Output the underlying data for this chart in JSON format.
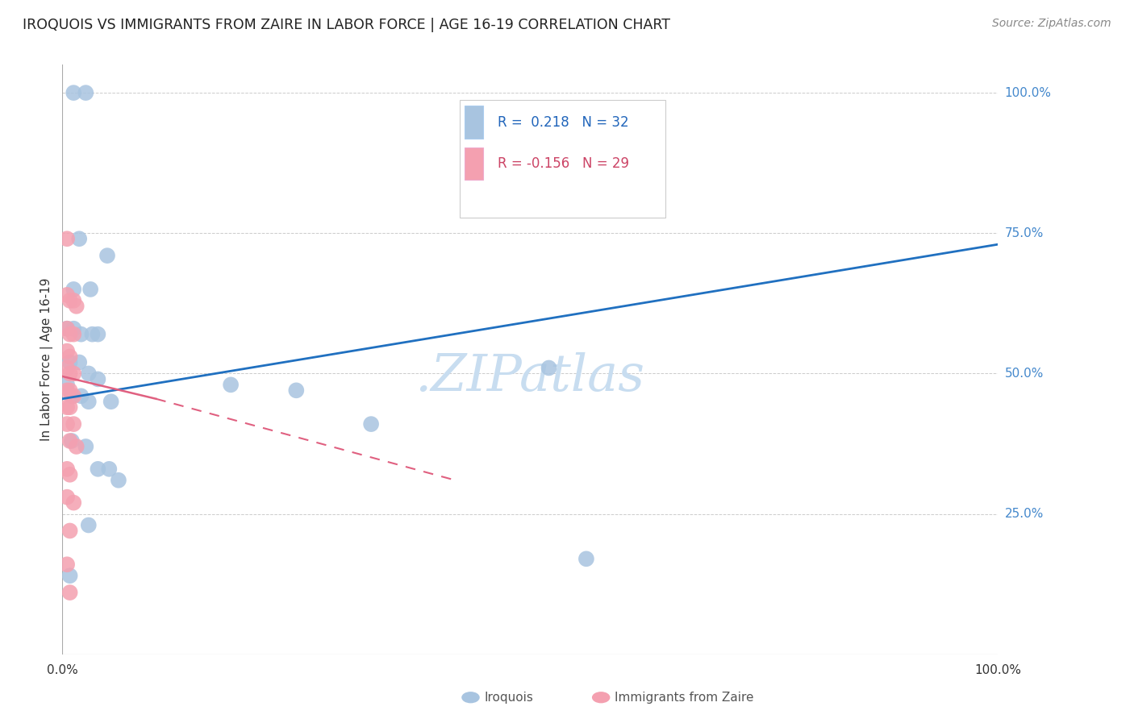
{
  "title": "IROQUOIS VS IMMIGRANTS FROM ZAIRE IN LABOR FORCE | AGE 16-19 CORRELATION CHART",
  "source": "Source: ZipAtlas.com",
  "ylabel": "In Labor Force | Age 16-19",
  "xlim": [
    0.0,
    1.0
  ],
  "ylim": [
    0.0,
    1.05
  ],
  "ytick_labels": [
    "25.0%",
    "50.0%",
    "75.0%",
    "100.0%"
  ],
  "ytick_values": [
    0.25,
    0.5,
    0.75,
    1.0
  ],
  "legend_iroquois_R": "0.218",
  "legend_iroquois_N": "32",
  "legend_zaire_R": "-0.156",
  "legend_zaire_N": "29",
  "iroquois_color": "#a8c4e0",
  "zaire_color": "#f4a0b0",
  "trendline_iroquois_color": "#2070c0",
  "trendline_zaire_color": "#e06080",
  "watermark": ".ZIPatlas",
  "watermark_color": "#c8ddf0",
  "background_color": "#ffffff",
  "iroquois_points": [
    [
      0.012,
      1.0
    ],
    [
      0.025,
      1.0
    ],
    [
      0.018,
      0.74
    ],
    [
      0.048,
      0.71
    ],
    [
      0.012,
      0.65
    ],
    [
      0.03,
      0.65
    ],
    [
      0.005,
      0.58
    ],
    [
      0.012,
      0.58
    ],
    [
      0.02,
      0.57
    ],
    [
      0.032,
      0.57
    ],
    [
      0.038,
      0.57
    ],
    [
      0.008,
      0.52
    ],
    [
      0.018,
      0.52
    ],
    [
      0.028,
      0.5
    ],
    [
      0.038,
      0.49
    ],
    [
      0.005,
      0.48
    ],
    [
      0.01,
      0.46
    ],
    [
      0.02,
      0.46
    ],
    [
      0.028,
      0.45
    ],
    [
      0.052,
      0.45
    ],
    [
      0.01,
      0.38
    ],
    [
      0.025,
      0.37
    ],
    [
      0.038,
      0.33
    ],
    [
      0.05,
      0.33
    ],
    [
      0.06,
      0.31
    ],
    [
      0.028,
      0.23
    ],
    [
      0.52,
      0.51
    ],
    [
      0.18,
      0.48
    ],
    [
      0.25,
      0.47
    ],
    [
      0.33,
      0.41
    ],
    [
      0.008,
      0.14
    ],
    [
      0.56,
      0.17
    ]
  ],
  "zaire_points": [
    [
      0.005,
      0.74
    ],
    [
      0.005,
      0.64
    ],
    [
      0.008,
      0.63
    ],
    [
      0.012,
      0.63
    ],
    [
      0.015,
      0.62
    ],
    [
      0.005,
      0.58
    ],
    [
      0.008,
      0.57
    ],
    [
      0.012,
      0.57
    ],
    [
      0.005,
      0.54
    ],
    [
      0.008,
      0.53
    ],
    [
      0.005,
      0.51
    ],
    [
      0.008,
      0.5
    ],
    [
      0.012,
      0.5
    ],
    [
      0.005,
      0.47
    ],
    [
      0.008,
      0.47
    ],
    [
      0.012,
      0.46
    ],
    [
      0.005,
      0.44
    ],
    [
      0.008,
      0.44
    ],
    [
      0.005,
      0.41
    ],
    [
      0.012,
      0.41
    ],
    [
      0.008,
      0.38
    ],
    [
      0.015,
      0.37
    ],
    [
      0.005,
      0.33
    ],
    [
      0.008,
      0.32
    ],
    [
      0.005,
      0.28
    ],
    [
      0.012,
      0.27
    ],
    [
      0.008,
      0.22
    ],
    [
      0.005,
      0.16
    ],
    [
      0.008,
      0.11
    ]
  ],
  "trendline_iroquois_x0": 0.0,
  "trendline_iroquois_y0": 0.455,
  "trendline_iroquois_x1": 1.0,
  "trendline_iroquois_y1": 0.73,
  "trendline_zaire_solid_x0": 0.0,
  "trendline_zaire_solid_y0": 0.495,
  "trendline_zaire_solid_x1": 0.1,
  "trendline_zaire_solid_y1": 0.455,
  "trendline_zaire_dash_x0": 0.1,
  "trendline_zaire_dash_y0": 0.455,
  "trendline_zaire_dash_x1": 0.42,
  "trendline_zaire_dash_y1": 0.31
}
